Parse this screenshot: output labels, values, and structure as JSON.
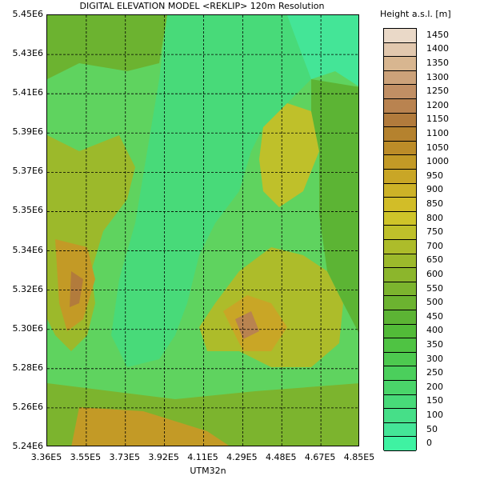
{
  "title": "DIGITAL ELEVATION MODEL <REKLIP> 120m Resolution",
  "x_axis": {
    "label": "UTM32n",
    "ticks": [
      "3.36E5",
      "3.55E5",
      "3.73E5",
      "3.92E5",
      "4.11E5",
      "4.29E5",
      "4.48E5",
      "4.67E5",
      "4.85E5"
    ]
  },
  "y_axis": {
    "ticks": [
      "5.45E6",
      "5.43E6",
      "5.41E6",
      "5.39E6",
      "5.37E6",
      "5.35E6",
      "5.34E6",
      "5.32E6",
      "5.30E6",
      "5.28E6",
      "5.26E6",
      "5.24E6"
    ]
  },
  "legend": {
    "title": "Height a.s.l. [m]",
    "levels": [
      {
        "label": "1450",
        "color": "#ead9c8"
      },
      {
        "label": "1400",
        "color": "#e2c8ae"
      },
      {
        "label": "1350",
        "color": "#d8b690"
      },
      {
        "label": "1300",
        "color": "#cca27a"
      },
      {
        "label": "1250",
        "color": "#c18f64"
      },
      {
        "label": "1200",
        "color": "#b98350"
      },
      {
        "label": "1150",
        "color": "#b27b3c"
      },
      {
        "label": "1100",
        "color": "#b5822e"
      },
      {
        "label": "1050",
        "color": "#bc8c28"
      },
      {
        "label": "1000",
        "color": "#c39a26"
      },
      {
        "label": "950",
        "color": "#c9a626"
      },
      {
        "label": "900",
        "color": "#cdb227"
      },
      {
        "label": "850",
        "color": "#d2bd28"
      },
      {
        "label": "800",
        "color": "#cfc429"
      },
      {
        "label": "750",
        "color": "#bfc02a"
      },
      {
        "label": "700",
        "color": "#adbc2a"
      },
      {
        "label": "650",
        "color": "#9cb92b"
      },
      {
        "label": "600",
        "color": "#8cb62c"
      },
      {
        "label": "550",
        "color": "#7cb42e"
      },
      {
        "label": "500",
        "color": "#6cb330"
      },
      {
        "label": "450",
        "color": "#5cb434"
      },
      {
        "label": "400",
        "color": "#52bb38"
      },
      {
        "label": "350",
        "color": "#4fc343"
      },
      {
        "label": "300",
        "color": "#4dc94f"
      },
      {
        "label": "250",
        "color": "#4bcf5c"
      },
      {
        "label": "200",
        "color": "#4ad56a"
      },
      {
        "label": "150",
        "color": "#48da79"
      },
      {
        "label": "100",
        "color": "#46df88"
      },
      {
        "label": "50",
        "color": "#44e597"
      },
      {
        "label": "0",
        "color": "#3ff2a2"
      }
    ]
  }
}
